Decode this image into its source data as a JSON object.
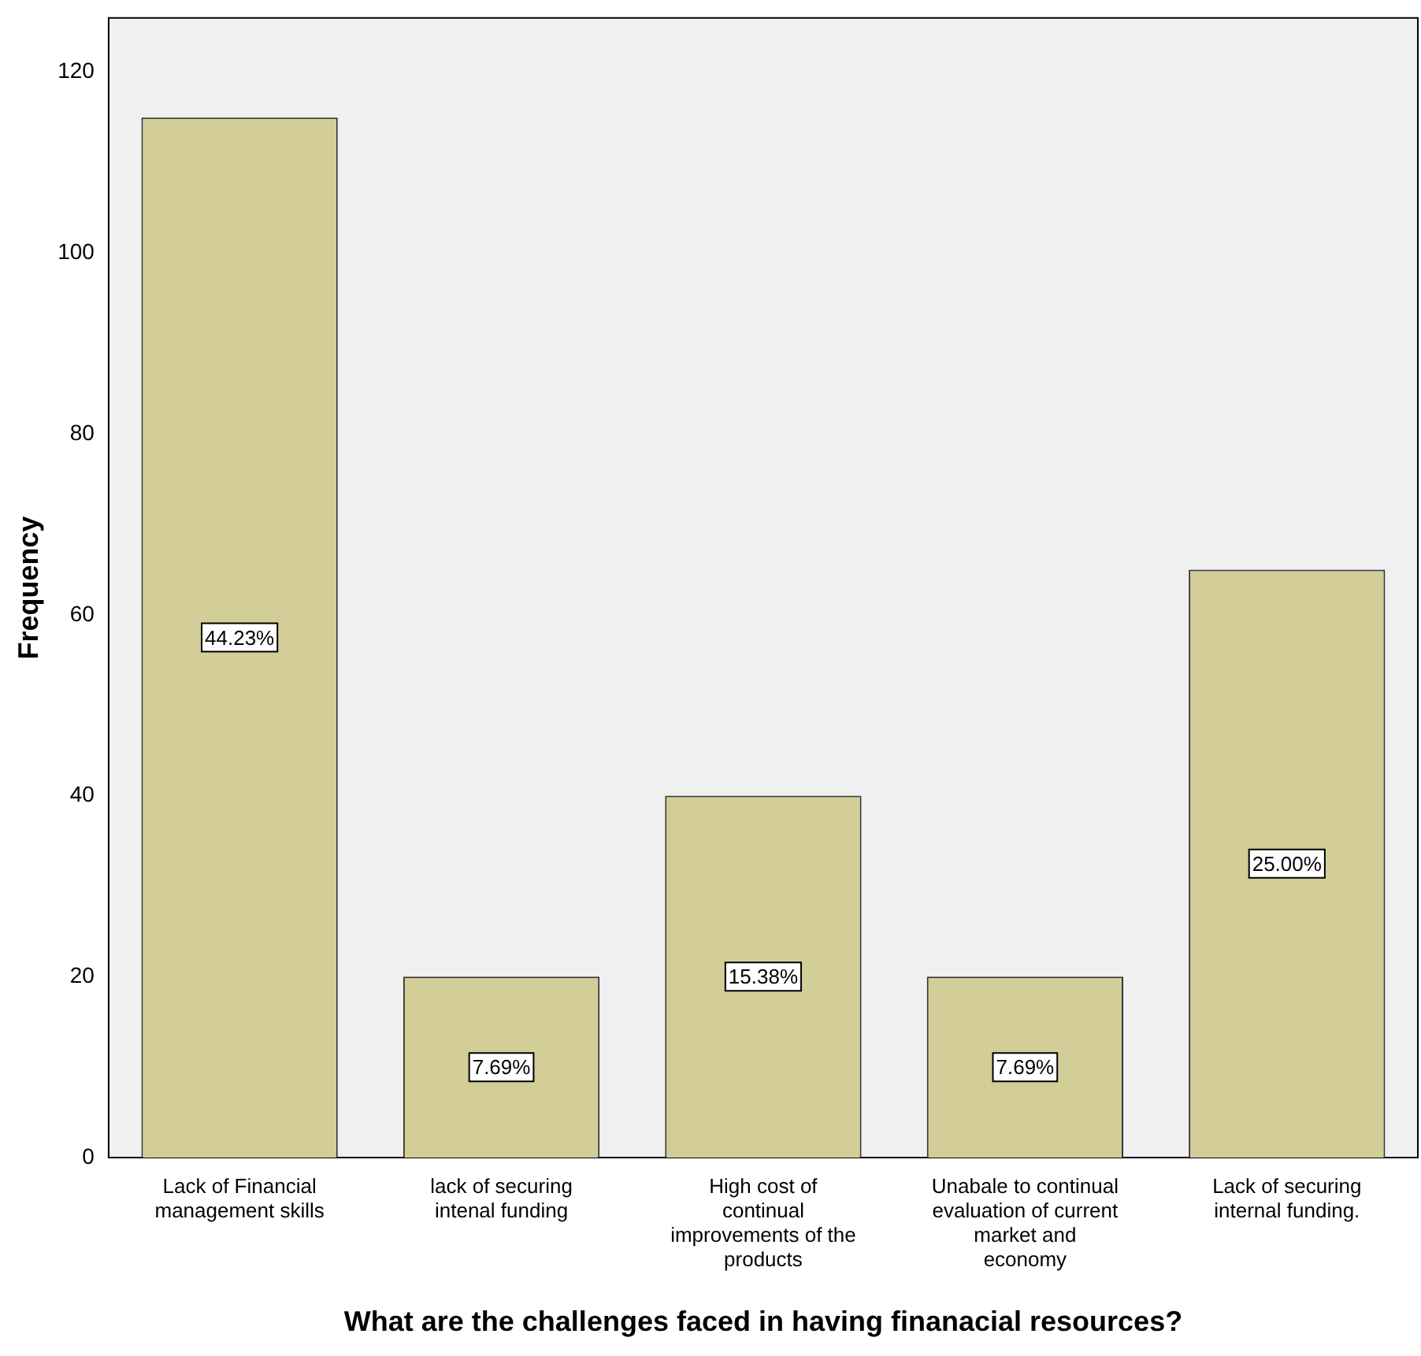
{
  "chart_data": {
    "type": "bar",
    "xlabel": "What are the challenges faced in having finanacial resources?",
    "ylabel": "Frequency",
    "categories": [
      "Lack of Financial management skills",
      "lack of securing intenal funding",
      "High cost of continual improvements of the products",
      "Unabale to continual evaluation of current market and economy",
      "Lack of securing internal funding."
    ],
    "values": [
      115,
      20,
      40,
      20,
      65
    ],
    "color": "#d3ce97",
    "annotations": [
      "44.23%",
      "7.69%",
      "15.38%",
      "7.69%",
      "25.00%"
    ],
    "ylim": [
      0,
      126
    ],
    "yticks": [
      0,
      20,
      40,
      60,
      80,
      100,
      120
    ],
    "grid": false,
    "legend": false
  }
}
